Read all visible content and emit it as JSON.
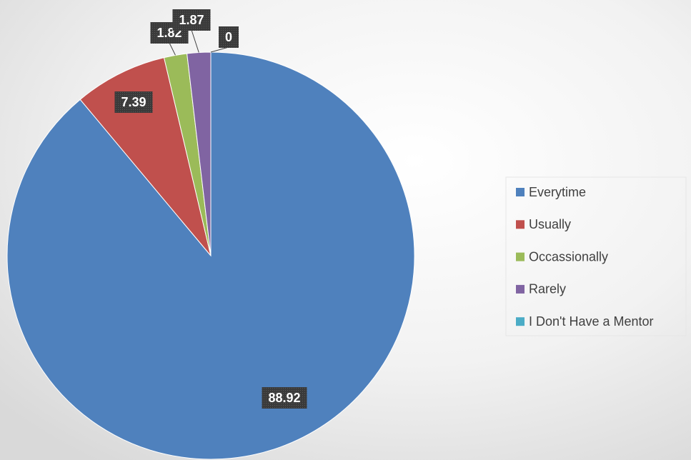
{
  "chart_data": {
    "type": "pie",
    "categories": [
      "Everytime",
      "Usually",
      "Occassionally",
      "Rarely",
      "I Don't Have a Mentor"
    ],
    "values": [
      88.92,
      7.39,
      1.82,
      1.87,
      0
    ],
    "colors": [
      "#4f81bd",
      "#c0504d",
      "#9bbb59",
      "#8064a2",
      "#4bacc6"
    ],
    "legend": "right"
  }
}
